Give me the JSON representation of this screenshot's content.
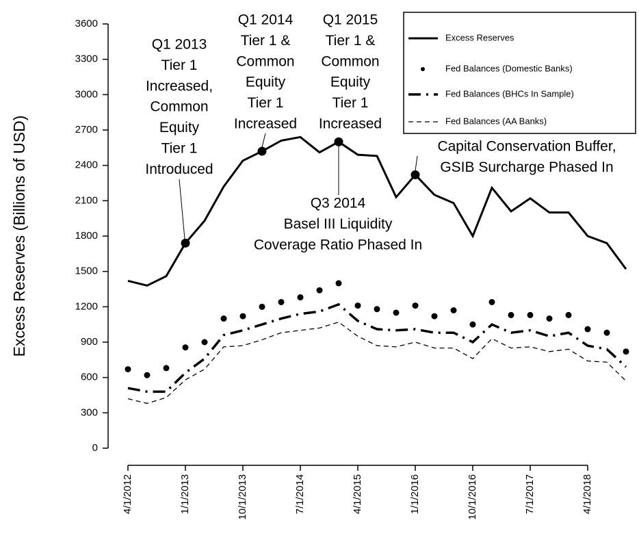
{
  "chart_data": {
    "type": "line",
    "y_label": "Excess Reserves (Billions of USD)",
    "categories": [
      "4/1/2012",
      null,
      null,
      "1/1/2013",
      null,
      null,
      "10/1/2013",
      null,
      null,
      "7/1/2014",
      null,
      null,
      "4/1/2015",
      null,
      null,
      "1/1/2016",
      null,
      null,
      "10/1/2016",
      null,
      null,
      "7/1/2017",
      null,
      null,
      "4/1/2018",
      null,
      null
    ],
    "ylim": [
      0,
      3600
    ],
    "yticks": [
      0,
      300,
      600,
      900,
      1200,
      1500,
      1800,
      2100,
      2400,
      2700,
      3000,
      3300,
      3600
    ],
    "series": [
      {
        "name": "Excess Reserves",
        "color": "#000000",
        "style": "solid",
        "values": [
          1420,
          1380,
          1460,
          1740,
          1930,
          2220,
          2440,
          2520,
          2610,
          2640,
          2510,
          2600,
          2490,
          2480,
          2130,
          2320,
          2150,
          2080,
          1800,
          2210,
          2010,
          2120,
          2000,
          2000,
          1800,
          1740,
          1520
        ]
      },
      {
        "name": "Fed Balances (Domestic Banks)",
        "color": "#000000",
        "style": "dots",
        "values": [
          670,
          620,
          680,
          855,
          900,
          1100,
          1120,
          1200,
          1240,
          1280,
          1340,
          1400,
          1210,
          1180,
          1150,
          1210,
          1120,
          1170,
          1050,
          1240,
          1130,
          1130,
          1100,
          1130,
          1010,
          980,
          820
        ]
      },
      {
        "name": "Fed Balances (BHCs In Sample)",
        "color": "#000000",
        "style": "dashdot",
        "values": [
          510,
          480,
          480,
          640,
          760,
          960,
          1000,
          1050,
          1100,
          1140,
          1160,
          1220,
          1080,
          1010,
          1000,
          1010,
          980,
          980,
          900,
          1050,
          980,
          1000,
          950,
          980,
          870,
          840,
          690
        ]
      },
      {
        "name": "Fed Balances (AA Banks)",
        "color": "#000000",
        "style": "dashed",
        "values": [
          420,
          380,
          430,
          580,
          670,
          860,
          870,
          920,
          980,
          1000,
          1020,
          1070,
          950,
          870,
          860,
          900,
          850,
          850,
          760,
          930,
          850,
          860,
          820,
          840,
          740,
          730,
          570
        ]
      }
    ],
    "annotations": [
      [
        "Q1 2013",
        "Tier 1",
        "Increased,",
        "Common",
        "Equity",
        "Tier 1",
        "Introduced"
      ],
      [
        "Q1 2014",
        "Tier 1 &",
        "Common",
        "Equity",
        "Tier 1",
        "Increased"
      ],
      [
        "Q1 2015",
        "Tier 1 &",
        "Common",
        "Equity",
        "Tier 1",
        "Increased"
      ],
      [
        "Q3 2014",
        "Basel III Liquidity",
        "Coverage Ratio Phased In"
      ],
      [
        "Capital Conservation Buffer,",
        "GSIB Surcharge Phased In"
      ]
    ]
  }
}
